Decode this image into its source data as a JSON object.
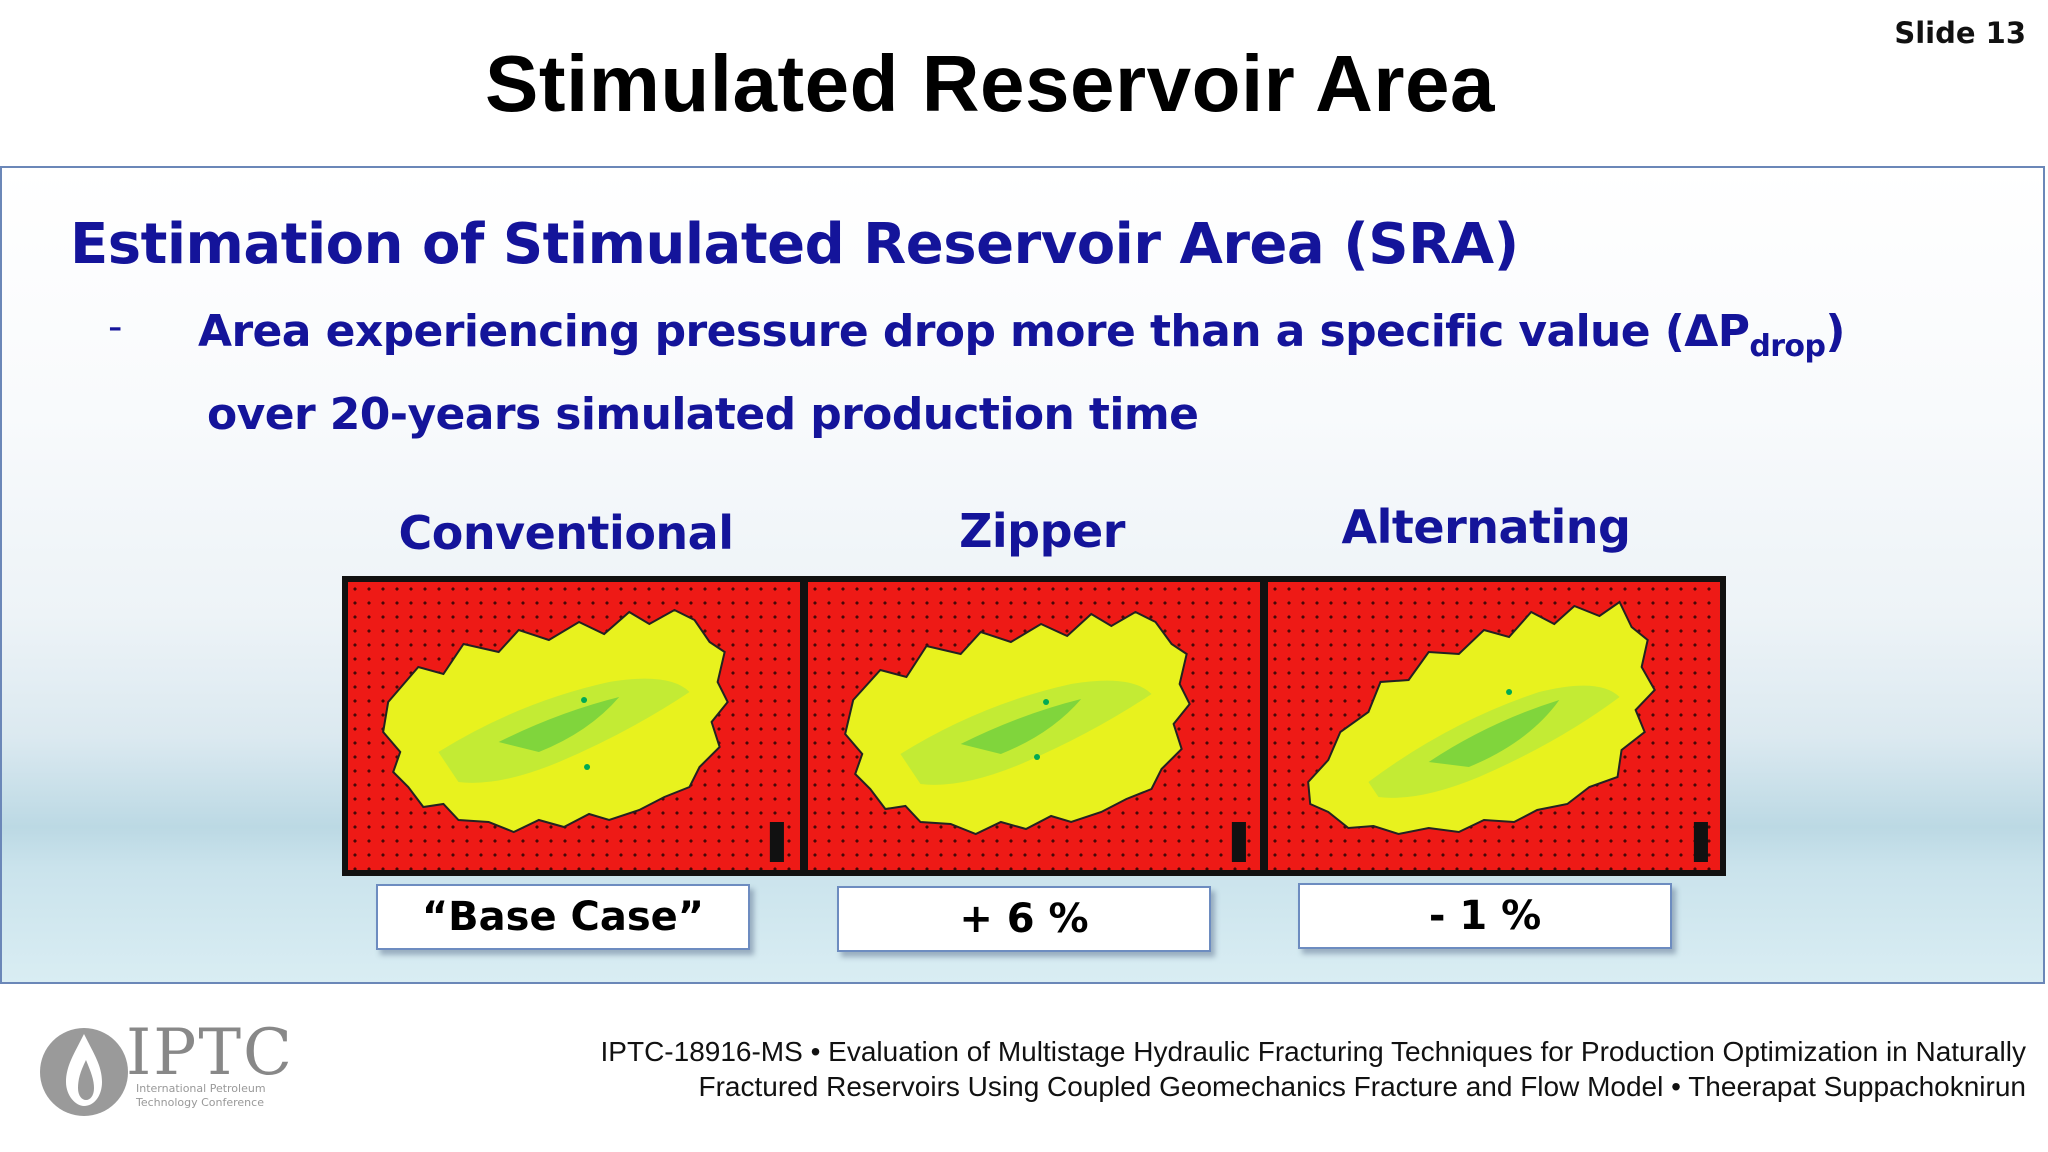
{
  "slide_number": "Slide 13",
  "title": "Stimulated Reservoir Area",
  "heading": "Estimation of Stimulated Reservoir Area (SRA)",
  "bullet": {
    "marker": "-",
    "line1_text": "Area experiencing pressure drop more than a specific value (ΔP",
    "line1_sub": "drop",
    "line1_close": ")",
    "line2": "over 20-years simulated production time"
  },
  "methods": [
    {
      "label": "Conventional",
      "result": "“Base Case”"
    },
    {
      "label": "Zipper",
      "result": "+ 6 %"
    },
    {
      "label": "Alternating",
      "result": "- 1 %"
    }
  ],
  "colors": {
    "heading": "#14149a",
    "map_background": "#ee1a16",
    "sra_fill": "#e8f21e",
    "sra_inner": "#7ed43a",
    "box_border": "#6d8cc0"
  },
  "logo": {
    "text": "IPTC",
    "subtext_line1": "International Petroleum",
    "subtext_line2": "Technology Conference"
  },
  "footer": {
    "line1": "IPTC-18916-MS • Evaluation of Multistage Hydraulic Fracturing Techniques for Production Optimization in Naturally",
    "line2": "Fractured Reservoirs Using Coupled Geomechanics Fracture and Flow Model • Theerapat Suppachoknirun"
  }
}
